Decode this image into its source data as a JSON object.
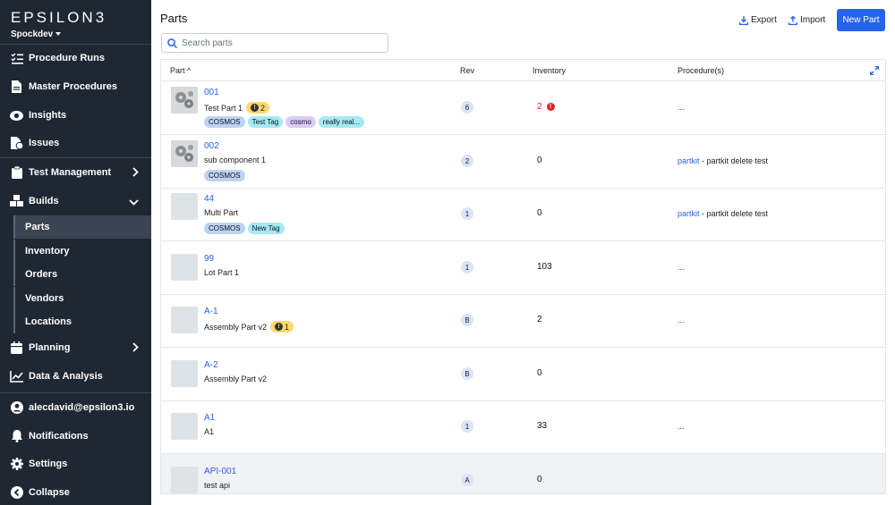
{
  "app": {
    "logo": "EPSILON3",
    "workspace": "Spockdev"
  },
  "sidebar": {
    "items": [
      {
        "label": "Procedure Runs"
      },
      {
        "label": "Master Procedures"
      },
      {
        "label": "Insights"
      },
      {
        "label": "Issues"
      },
      {
        "label": "Test Management"
      },
      {
        "label": "Builds"
      },
      {
        "label": "Planning"
      },
      {
        "label": "Data & Analysis"
      }
    ],
    "builds_sub": [
      {
        "label": "Parts",
        "active": true
      },
      {
        "label": "Inventory"
      },
      {
        "label": "Orders"
      },
      {
        "label": "Vendors"
      },
      {
        "label": "Locations"
      }
    ],
    "footer": [
      {
        "label": "alecdavid@epsilon3.io"
      },
      {
        "label": "Notifications"
      },
      {
        "label": "Settings"
      },
      {
        "label": "Collapse"
      }
    ]
  },
  "page": {
    "title": "Parts",
    "search_placeholder": "Search parts",
    "export_label": "Export",
    "import_label": "Import",
    "new_part_label": "New Part"
  },
  "table": {
    "columns": {
      "part": "Part ^",
      "rev": "Rev",
      "inventory": "Inventory",
      "procedures": "Procedure(s)"
    },
    "rows": [
      {
        "id": "001",
        "name": "Test Part 1",
        "warning": "2",
        "rev": "6",
        "inventory": "2",
        "inventory_error": true,
        "tags": [
          "COSMOS",
          "Test Tag",
          "cosmo",
          "really real..."
        ],
        "procedure_link": "",
        "procedure_text": "...",
        "thumb": "gears"
      },
      {
        "id": "002",
        "name": "sub component 1",
        "warning": "",
        "rev": "2",
        "inventory": "0",
        "tags": [
          "COSMOS"
        ],
        "procedure_link": "partkit",
        "procedure_text": " - partkit delete test",
        "thumb": "gears"
      },
      {
        "id": "44",
        "name": "Multi Part",
        "warning": "",
        "rev": "1",
        "inventory": "0",
        "tags": [
          "COSMOS",
          "New Tag"
        ],
        "procedure_link": "partkit",
        "procedure_text": " - partkit delete test",
        "thumb": "blank"
      },
      {
        "id": "99",
        "name": "Lot Part 1",
        "warning": "",
        "rev": "1",
        "inventory": "103",
        "tags": [],
        "procedure_link": "",
        "procedure_text": "...",
        "thumb": "blank"
      },
      {
        "id": "A-1",
        "name": "Assembly Part v2",
        "warning": "1",
        "rev": "B",
        "inventory": "2",
        "tags": [],
        "procedure_link": "",
        "procedure_text": "...",
        "thumb": "blank"
      },
      {
        "id": "A-2",
        "name": "Assembly Part v2",
        "warning": "",
        "rev": "B",
        "inventory": "0",
        "tags": [],
        "procedure_link": "",
        "procedure_text": "",
        "thumb": "blank"
      },
      {
        "id": "A1",
        "name": "A1",
        "warning": "",
        "rev": "1",
        "inventory": "33",
        "tags": [],
        "procedure_link": "",
        "procedure_text": "...",
        "thumb": "blank"
      },
      {
        "id": "API-001",
        "name": "test api",
        "warning": "",
        "rev": "A",
        "inventory": "0",
        "tags": [],
        "procedure_link": "",
        "procedure_text": "",
        "thumb": "blank"
      }
    ]
  },
  "colors": {
    "sidebar_bg": "#1f2733",
    "accent": "#2563eb",
    "tag_blue": "#bcd3f5",
    "tag_cyan": "#a5e9f3",
    "tag_purple": "#d9ccf7",
    "warning": "#fcd96b",
    "error": "#dc2626"
  },
  "icons": [
    "list-check-icon",
    "file-icon",
    "eye-icon",
    "file-issue-icon",
    "clipboard-icon",
    "cubes-icon",
    "calendar-icon",
    "chart-line-icon",
    "user-icon",
    "bell-icon",
    "gear-icon",
    "collapse-arrow-icon",
    "search-icon",
    "download-icon",
    "upload-icon",
    "expand-icon"
  ]
}
